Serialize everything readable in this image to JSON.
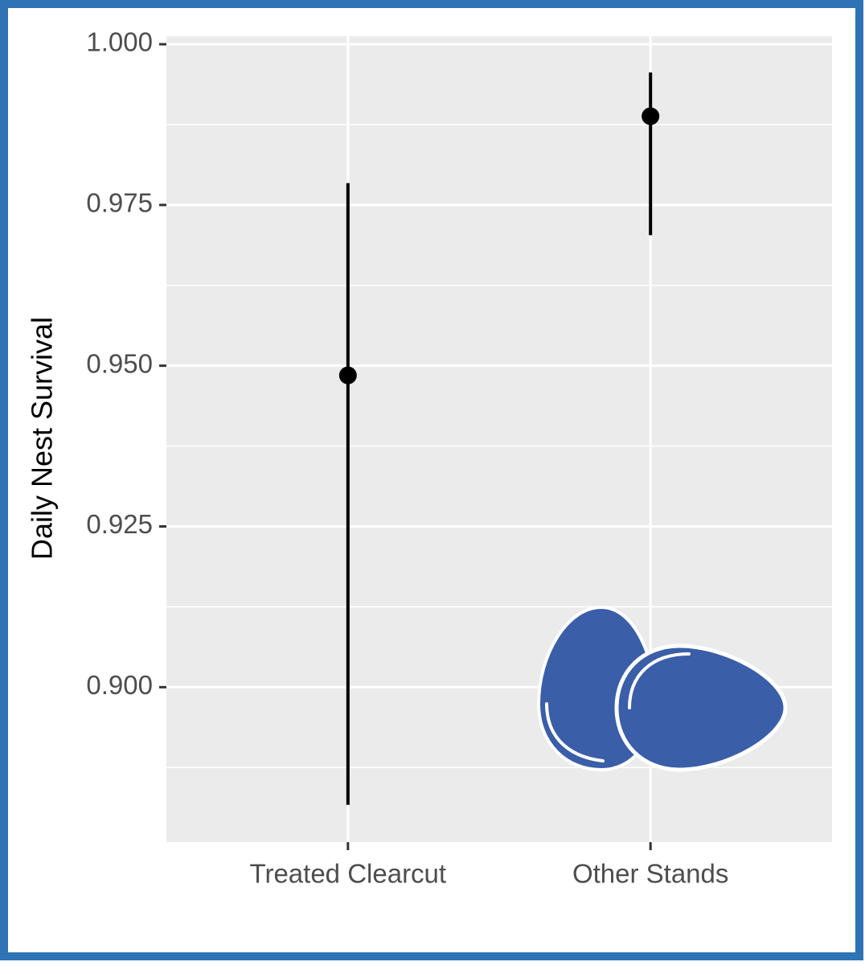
{
  "chart_data": {
    "type": "errorbar",
    "y_label": "Daily Nest Survival",
    "categories": [
      "Treated Clearcut",
      "Other Stands"
    ],
    "values": [
      0.9485,
      0.9888
    ],
    "lower": [
      0.8817,
      0.9703
    ],
    "upper": [
      0.9784,
      0.9956
    ],
    "color": "#000000",
    "ylim": [
      0.8759,
      1.00125
    ],
    "yticks": [
      {
        "value": 0.9,
        "label": "0.900"
      },
      {
        "value": 0.925,
        "label": "0.925"
      },
      {
        "value": 0.95,
        "label": "0.950"
      },
      {
        "value": 0.975,
        "label": "0.975"
      },
      {
        "value": 1.0,
        "label": "1.000"
      }
    ],
    "minor_grid": [
      0.8875,
      0.9125,
      0.9375,
      0.9625,
      0.9875
    ],
    "grid": true
  }
}
